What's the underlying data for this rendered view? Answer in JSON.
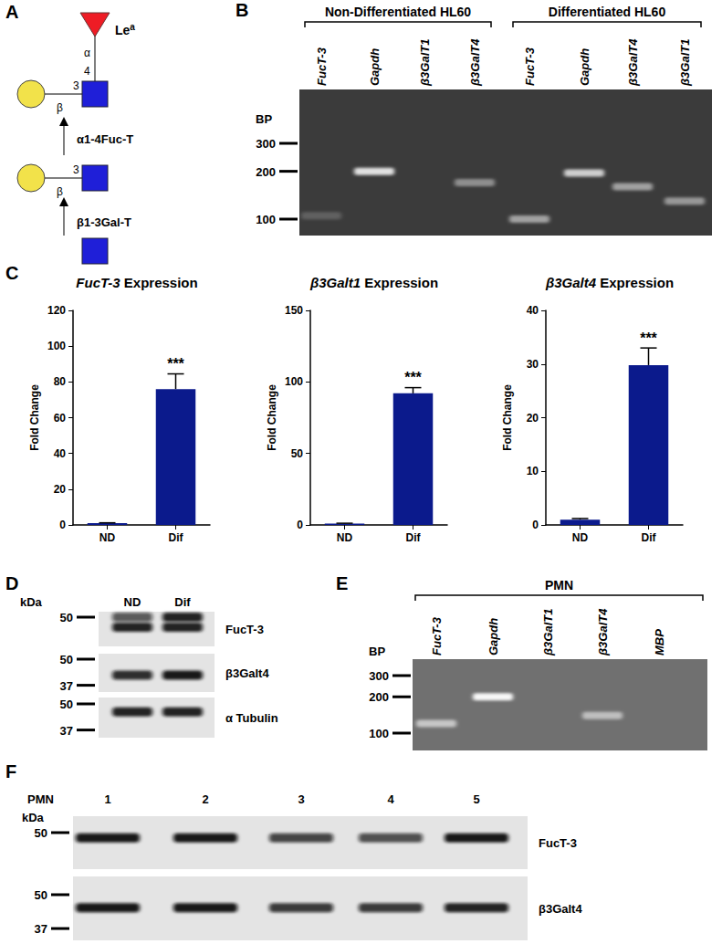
{
  "chart_data": [
    {
      "type": "bar",
      "title": "FucT-3 Expression",
      "ylabel": "Fold Change",
      "categories": [
        "ND",
        "Dif"
      ],
      "values": [
        1,
        76
      ],
      "errors": [
        0.2,
        8.5
      ],
      "color": "#0b1a8c",
      "ylim": [
        0,
        120
      ],
      "yticks": [
        0,
        20,
        40,
        60,
        80,
        100,
        120
      ],
      "grid": false,
      "annotations": [
        {
          "category": "Dif",
          "text": "***"
        }
      ]
    },
    {
      "type": "bar",
      "title": "β3Galt1 Expression",
      "ylabel": "Fold Change",
      "categories": [
        "ND",
        "Dif"
      ],
      "values": [
        1,
        92
      ],
      "errors": [
        0.2,
        4
      ],
      "color": "#0b1a8c",
      "ylim": [
        0,
        150
      ],
      "yticks": [
        0,
        50,
        100,
        150
      ],
      "grid": false,
      "annotations": [
        {
          "category": "Dif",
          "text": "***"
        }
      ]
    },
    {
      "type": "bar",
      "title": "β3Galt4 Expression",
      "ylabel": "Fold Change",
      "categories": [
        "ND",
        "Dif"
      ],
      "values": [
        1,
        29.8
      ],
      "errors": [
        0.2,
        3.2
      ],
      "color": "#0b1a8c",
      "ylim": [
        0,
        40
      ],
      "yticks": [
        0,
        10,
        20,
        30,
        40
      ],
      "grid": false,
      "annotations": [
        {
          "category": "Dif",
          "text": "***"
        }
      ]
    }
  ],
  "panels": {
    "A": {
      "label": "A",
      "product": {
        "text": "Le",
        "sup": "a"
      },
      "top_links": {
        "gal": {
          "anomer": "β",
          "position": "3"
        },
        "fuc": {
          "anomer": "α",
          "position": "4"
        }
      },
      "middle_link": {
        "anomer": "β",
        "position": "3"
      },
      "enzymes": [
        "α1-4Fuc-T",
        "β1-3Gal-T"
      ]
    },
    "B": {
      "label": "B",
      "size_label": "BP",
      "markers": [
        300,
        200,
        100
      ],
      "groups": [
        {
          "title": "Non-Differentiated HL60",
          "lanes": [
            "FucT-3",
            "Gapdh",
            "β3GalT1",
            "β3GalT4"
          ],
          "bands": [
            [
              {
                "bp": 105,
                "intensity": 0.2
              }
            ],
            [
              {
                "bp": 200,
                "intensity": 0.9
              }
            ],
            [],
            [
              {
                "bp": 170,
                "intensity": 0.45
              }
            ]
          ]
        },
        {
          "title": "Differentiated HL60",
          "lanes": [
            "FucT-3",
            "Gapdh",
            "β3GalT4",
            "β3GalT1"
          ],
          "bands": [
            [
              {
                "bp": 100,
                "intensity": 0.55
              }
            ],
            [
              {
                "bp": 195,
                "intensity": 0.8
              }
            ],
            [
              {
                "bp": 160,
                "intensity": 0.55
              }
            ],
            [
              {
                "bp": 130,
                "intensity": 0.5
              }
            ]
          ]
        }
      ]
    },
    "C": {
      "label": "C"
    },
    "D": {
      "label": "D",
      "size_label": "kDa",
      "lanes": [
        "ND",
        "Dif"
      ],
      "blots": [
        {
          "name": "FucT-3",
          "markers": [
            50
          ],
          "bands": [
            [
              {
                "kda": 50,
                "intensity": 0.65
              },
              {
                "kda": 45,
                "intensity": 0.9
              }
            ],
            [
              {
                "kda": 50,
                "intensity": 0.9
              },
              {
                "kda": 45,
                "intensity": 0.9
              }
            ]
          ]
        },
        {
          "name": "β3Galt4",
          "markers": [
            50,
            37
          ],
          "bands": [
            [
              {
                "kda": 42,
                "intensity": 0.85
              }
            ],
            [
              {
                "kda": 42,
                "intensity": 0.95
              }
            ]
          ]
        },
        {
          "name": "α Tubulin",
          "markers": [
            50,
            37
          ],
          "bands": [
            [
              {
                "kda": 46,
                "intensity": 0.9
              }
            ],
            [
              {
                "kda": 46,
                "intensity": 0.9
              }
            ]
          ]
        }
      ]
    },
    "E": {
      "label": "E",
      "title": "PMN",
      "size_label": "BP",
      "markers": [
        300,
        200,
        100
      ],
      "lanes": [
        "FucT-3",
        "Gapdh",
        "β3GalT1",
        "β3GalT4",
        "MBP"
      ],
      "bands": [
        [
          {
            "bp": 120,
            "intensity": 0.6
          }
        ],
        [
          {
            "bp": 200,
            "intensity": 0.95
          }
        ],
        [],
        [
          {
            "bp": 140,
            "intensity": 0.55
          }
        ],
        []
      ]
    },
    "F": {
      "label": "F",
      "title": "PMN",
      "size_label": "kDa",
      "lanes": [
        "1",
        "2",
        "3",
        "4",
        "5"
      ],
      "blots": [
        {
          "name": "FucT-3",
          "markers": [
            50
          ],
          "bands": [
            [
              {
                "kda": 48,
                "intensity": 0.95
              }
            ],
            [
              {
                "kda": 48,
                "intensity": 0.95
              }
            ],
            [
              {
                "kda": 48,
                "intensity": 0.75
              }
            ],
            [
              {
                "kda": 48,
                "intensity": 0.7
              }
            ],
            [
              {
                "kda": 48,
                "intensity": 0.95
              }
            ]
          ]
        },
        {
          "name": "β3Galt4",
          "markers": [
            50,
            37
          ],
          "bands": [
            [
              {
                "kda": 45,
                "intensity": 0.95
              }
            ],
            [
              {
                "kda": 45,
                "intensity": 0.95
              }
            ],
            [
              {
                "kda": 45,
                "intensity": 0.8
              }
            ],
            [
              {
                "kda": 45,
                "intensity": 0.8
              }
            ],
            [
              {
                "kda": 45,
                "intensity": 0.9
              }
            ]
          ]
        }
      ]
    }
  }
}
